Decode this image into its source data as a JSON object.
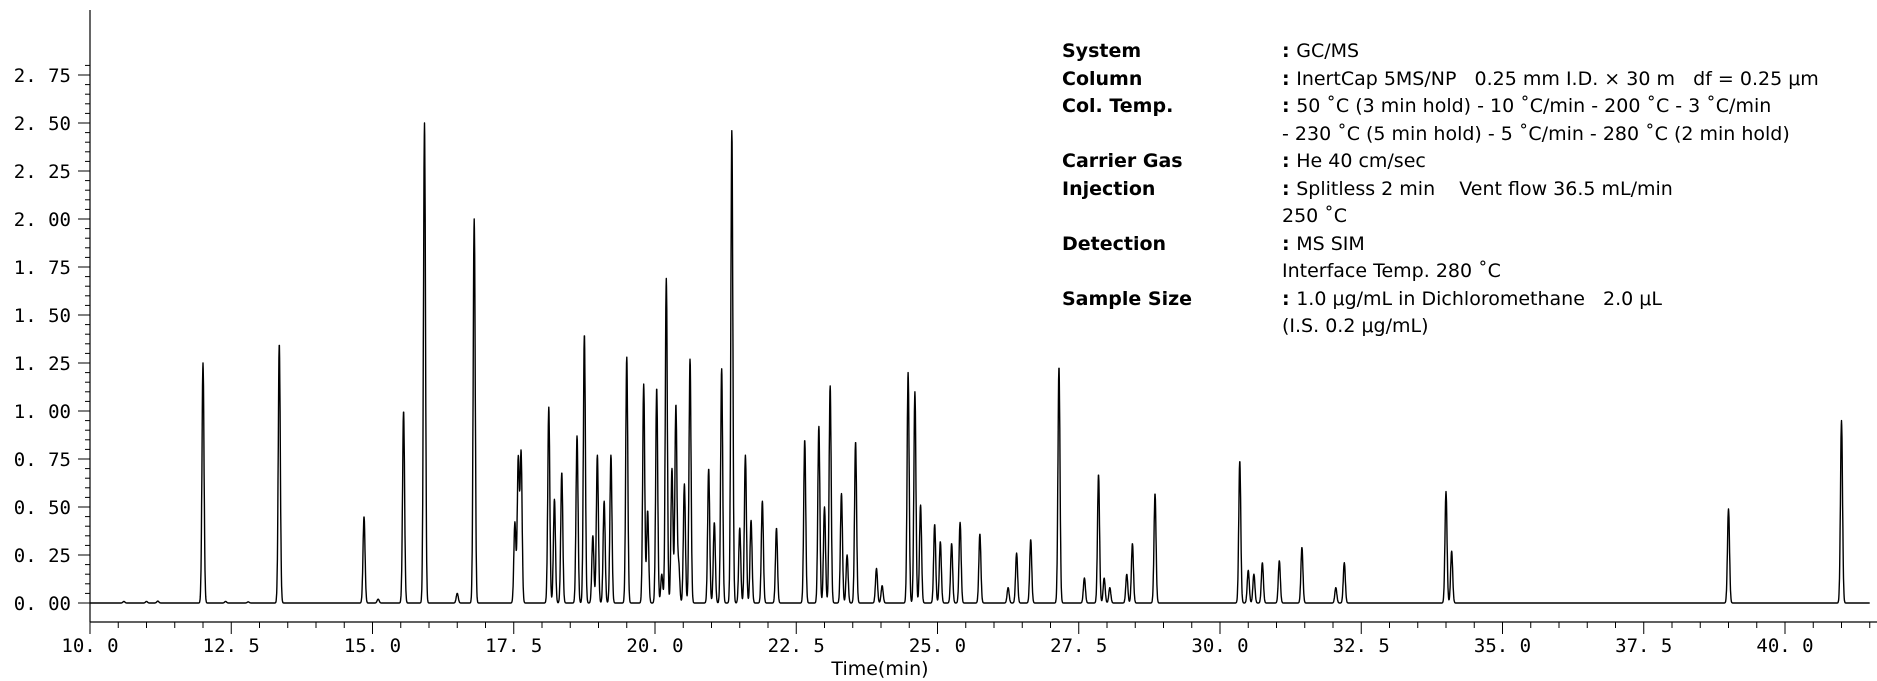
{
  "chart_data": {
    "type": "line",
    "title": "",
    "xlabel": "Time(min)",
    "ylabel": "",
    "xlim": [
      10.0,
      41.5
    ],
    "ylim": [
      -0.05,
      2.85
    ],
    "grid": false,
    "x_ticks": [
      10.0,
      12.5,
      15.0,
      17.5,
      20.0,
      22.5,
      25.0,
      27.5,
      30.0,
      32.5,
      35.0,
      37.5,
      40.0
    ],
    "x_tick_labels": [
      "10. 0",
      "12. 5",
      "15. 0",
      "17. 5",
      "20. 0",
      "22. 5",
      "25. 0",
      "27. 5",
      "30. 0",
      "32. 5",
      "35. 0",
      "37. 5",
      "40. 0"
    ],
    "y_ticks": [
      0.0,
      0.25,
      0.5,
      0.75,
      1.0,
      1.25,
      1.5,
      1.75,
      2.0,
      2.25,
      2.5,
      2.75
    ],
    "y_tick_labels": [
      "0. 00",
      "0. 25",
      "0. 50",
      "0. 75",
      "1. 00",
      "1. 25",
      "1. 50",
      "1. 75",
      "2. 00",
      "2. 25",
      "2. 50",
      "2. 75"
    ],
    "series": [
      {
        "peaks": [
          [
            10.6,
            0.008
          ],
          [
            11.0,
            0.008
          ],
          [
            11.2,
            0.01
          ],
          [
            12.0,
            1.25
          ],
          [
            12.4,
            0.008
          ],
          [
            12.8,
            0.006
          ],
          [
            13.35,
            1.35
          ],
          [
            14.85,
            0.45
          ],
          [
            15.1,
            0.02
          ],
          [
            15.55,
            1.0
          ],
          [
            15.92,
            2.5
          ],
          [
            16.5,
            0.05
          ],
          [
            16.8,
            2.0
          ],
          [
            17.52,
            0.42
          ],
          [
            17.58,
            0.75
          ],
          [
            17.63,
            0.78
          ],
          [
            18.12,
            1.02
          ],
          [
            18.22,
            0.54
          ],
          [
            18.35,
            0.68
          ],
          [
            18.62,
            0.87
          ],
          [
            18.75,
            1.4
          ],
          [
            18.9,
            0.35
          ],
          [
            18.98,
            0.77
          ],
          [
            19.1,
            0.53
          ],
          [
            19.22,
            0.77
          ],
          [
            19.5,
            1.28
          ],
          [
            19.8,
            1.14
          ],
          [
            19.87,
            0.48
          ],
          [
            20.03,
            1.12
          ],
          [
            20.12,
            0.15
          ],
          [
            20.2,
            1.69
          ],
          [
            20.3,
            0.7
          ],
          [
            20.37,
            1.03
          ],
          [
            20.42,
            0.2
          ],
          [
            20.52,
            0.62
          ],
          [
            20.62,
            1.27
          ],
          [
            20.95,
            0.7
          ],
          [
            21.05,
            0.42
          ],
          [
            21.18,
            1.22
          ],
          [
            21.36,
            2.46
          ],
          [
            21.5,
            0.39
          ],
          [
            21.6,
            0.77
          ],
          [
            21.7,
            0.43
          ],
          [
            21.9,
            0.53
          ],
          [
            22.15,
            0.39
          ],
          [
            22.65,
            0.85
          ],
          [
            22.9,
            0.92
          ],
          [
            23.0,
            0.5
          ],
          [
            23.1,
            1.13
          ],
          [
            23.3,
            0.57
          ],
          [
            23.4,
            0.25
          ],
          [
            23.55,
            0.84
          ],
          [
            23.92,
            0.18
          ],
          [
            24.02,
            0.09
          ],
          [
            24.48,
            1.2
          ],
          [
            24.6,
            1.1
          ],
          [
            24.7,
            0.51
          ],
          [
            24.95,
            0.41
          ],
          [
            25.05,
            0.32
          ],
          [
            25.25,
            0.31
          ],
          [
            25.4,
            0.42
          ],
          [
            25.75,
            0.36
          ],
          [
            26.25,
            0.08
          ],
          [
            26.4,
            0.26
          ],
          [
            26.65,
            0.33
          ],
          [
            27.15,
            1.23
          ],
          [
            27.6,
            0.13
          ],
          [
            27.85,
            0.67
          ],
          [
            27.95,
            0.13
          ],
          [
            28.05,
            0.08
          ],
          [
            28.35,
            0.15
          ],
          [
            28.45,
            0.31
          ],
          [
            28.85,
            0.57
          ],
          [
            30.35,
            0.74
          ],
          [
            30.5,
            0.17
          ],
          [
            30.6,
            0.15
          ],
          [
            30.75,
            0.21
          ],
          [
            31.05,
            0.22
          ],
          [
            31.45,
            0.29
          ],
          [
            32.05,
            0.08
          ],
          [
            32.2,
            0.21
          ],
          [
            34.0,
            0.58
          ],
          [
            34.1,
            0.27
          ],
          [
            39.0,
            0.49
          ],
          [
            41.0,
            0.95
          ]
        ]
      }
    ]
  },
  "conditions": {
    "rows": [
      {
        "label": "System",
        "value": "GC/MS"
      },
      {
        "label": "Column",
        "value": "InertCap 5MS/NP   0.25 mm I.D. × 30 m   df = 0.25 μm"
      },
      {
        "label": "Col. Temp.",
        "value": "50 ˚C (3 min hold) - 10 ˚C/min - 200 ˚C - 3 ˚C/min",
        "cont": "- 230 ˚C (5 min hold) - 5 ˚C/min - 280 ˚C (2 min hold)"
      },
      {
        "label": "Carrier Gas",
        "value": "He 40 cm/sec"
      },
      {
        "label": "Injection",
        "value": "Splitless 2 min    Vent flow 36.5 mL/min",
        "cont": "250 ˚C"
      },
      {
        "label": "Detection",
        "value": "MS SIM",
        "cont": "Interface Temp. 280 ˚C"
      },
      {
        "label": "Sample Size",
        "value": "1.0 μg/mL in Dichloromethane   2.0 μL",
        "cont": "(I.S. 0.2 μg/mL)"
      }
    ]
  }
}
